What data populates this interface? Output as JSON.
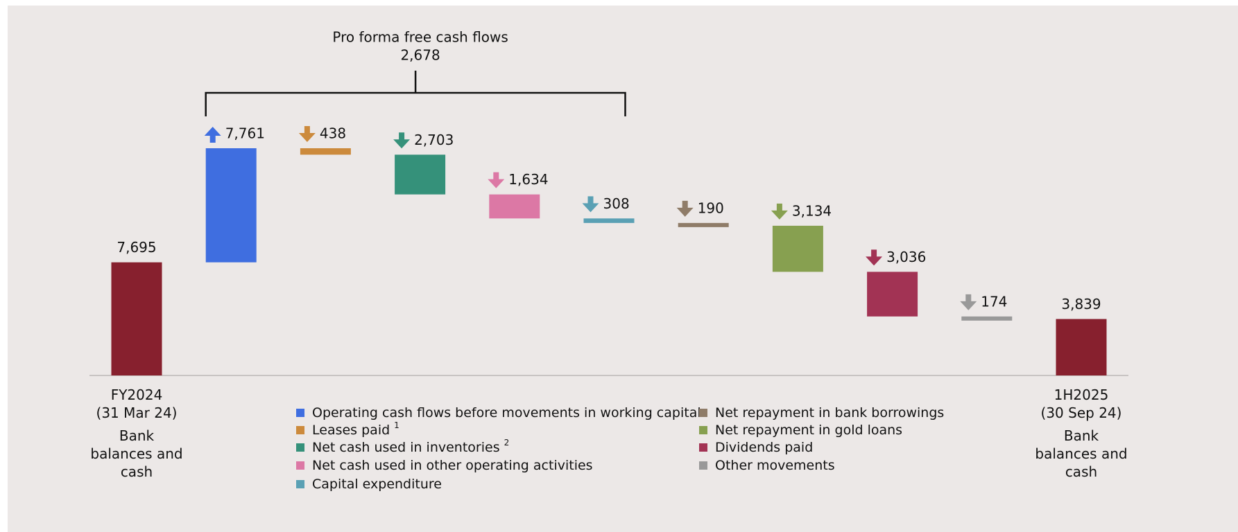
{
  "chart_data": {
    "type": "waterfall",
    "categories": [
      "FY2024",
      null,
      null,
      null,
      null,
      null,
      null,
      null,
      null,
      null,
      "1H2025"
    ],
    "category_dates": [
      "(31 Mar 24)",
      null,
      null,
      null,
      null,
      null,
      null,
      null,
      null,
      null,
      "(30 Sep 24)"
    ],
    "total_label": "Bank balances and cash",
    "measures": [
      "total",
      "relative",
      "relative",
      "relative",
      "relative",
      "relative",
      "relative",
      "relative",
      "relative",
      "relative",
      "total"
    ],
    "values": [
      7695,
      7761,
      -438,
      -2703,
      -1634,
      -308,
      -190,
      -3134,
      -3036,
      -174,
      3839
    ],
    "value_labels": [
      "7,695",
      "7,761",
      "438",
      "2,703",
      "1,634",
      "308",
      "190",
      "3,134",
      "3,036",
      "174",
      "3,839"
    ],
    "colors": [
      "#87202e",
      "#3f6ee0",
      "#cc8a3c",
      "#35917a",
      "#dc78a5",
      "#5aa0b4",
      "#8f7c68",
      "#87a050",
      "#a23354",
      "#999999",
      "#87202e"
    ],
    "legend": [
      {
        "name": "Operating cash flows before movements in working capital"
      },
      {
        "name": "Leases paid",
        "note": "1"
      },
      {
        "name": "Net cash used in inventories",
        "note": "2"
      },
      {
        "name": "Net cash used in other operating activities"
      },
      {
        "name": "Capital expenditure"
      },
      {
        "name": "Net repayment in bank borrowings"
      },
      {
        "name": "Net repayment in gold loans"
      },
      {
        "name": "Dividends paid"
      },
      {
        "name": "Other movements"
      }
    ],
    "annotation": {
      "text": "Pro forma free cash flows",
      "value": 2678,
      "value_label": "2,678"
    }
  }
}
